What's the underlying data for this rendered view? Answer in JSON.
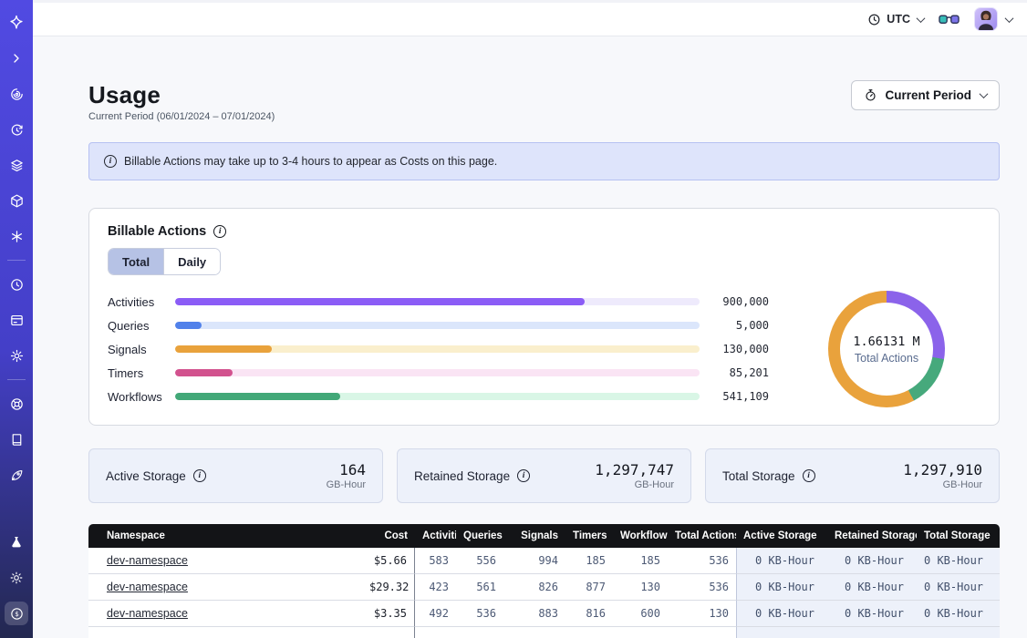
{
  "topbar": {
    "timezone_label": "UTC"
  },
  "sidebar": {
    "icons": [
      "temporal-logo",
      "collapse",
      "workflows",
      "schedules",
      "namespaces",
      "deployments",
      "nexus",
      "world-clock",
      "usage-window",
      "settings",
      "support",
      "docs",
      "getting-started",
      "labs",
      "theme",
      "billing"
    ],
    "active_icon": "billing"
  },
  "page": {
    "title": "Usage",
    "subtitle": "Current Period (06/01/2024 – 07/01/2024)",
    "period_button_label": "Current Period",
    "banner_text": "Billable Actions may take up to 3-4 hours to appear as Costs on this page."
  },
  "billable": {
    "title": "Billable Actions",
    "tabs": [
      "Total",
      "Daily"
    ],
    "active_tab": "Total"
  },
  "chart_data": [
    {
      "type": "bar",
      "title": "Billable Actions — Total",
      "categories": [
        "Activities",
        "Queries",
        "Signals",
        "Timers",
        "Workflows"
      ],
      "values": [
        900000,
        5000,
        130000,
        85201,
        541109
      ],
      "value_labels": [
        "900,000",
        "5,000",
        "130,000",
        "85,201",
        "541,109"
      ],
      "bar_colors": [
        "#8b5cf6",
        "#5181ea",
        "#e9a23c",
        "#d2528e",
        "#42a878"
      ],
      "track_colors": [
        "#eeeafc",
        "#dbe6fb",
        "#faefcd",
        "#fae4f4",
        "#d9f6e6"
      ],
      "fill_pct": [
        78,
        5,
        18.5,
        11,
        31.5
      ],
      "xlabel": "",
      "ylabel": "",
      "grid": false,
      "legend": false
    },
    {
      "type": "pie",
      "title": "Total Actions",
      "center_value": "1.66131 M",
      "center_label": "Total Actions",
      "segments": [
        {
          "color": "#8b63ea",
          "from_deg": 0,
          "to_deg": 100
        },
        {
          "color": "#46a97c",
          "from_deg": 100,
          "to_deg": 152
        },
        {
          "color": "#e9a23c",
          "from_deg": 152,
          "to_deg": 360
        }
      ]
    }
  ],
  "storage_cards": [
    {
      "label": "Active Storage",
      "value": "164",
      "unit": "GB-Hour"
    },
    {
      "label": "Retained Storage",
      "value": "1,297,747",
      "unit": "GB-Hour"
    },
    {
      "label": "Total Storage",
      "value": "1,297,910",
      "unit": "GB-Hour"
    }
  ],
  "table": {
    "columns": [
      "Namespace",
      "Cost",
      "Activities",
      "Queries",
      "Signals",
      "Timers",
      "Workflows",
      "Total Actions",
      "Active Storage",
      "Retained Storage",
      "Total Storage"
    ],
    "rows": [
      [
        "dev-namespace",
        "$5.66",
        "583",
        "556",
        "994",
        "185",
        "185",
        "536",
        "0 KB-Hour",
        "0 KB-Hour",
        "0 KB-Hour"
      ],
      [
        "dev-namespace",
        "$29.32",
        "423",
        "561",
        "826",
        "877",
        "130",
        "536",
        "0 KB-Hour",
        "0 KB-Hour",
        "0 KB-Hour"
      ],
      [
        "dev-namespace",
        "$3.35",
        "492",
        "536",
        "883",
        "816",
        "600",
        "130",
        "0 KB-Hour",
        "0 KB-Hour",
        "0 KB-Hour"
      ]
    ]
  },
  "colors": {
    "accent": "#444ce7",
    "sidebar_top": "#514ae2",
    "sidebar_bottom": "#232850",
    "banner_bg": "#dee4fb",
    "table_header_bg": "#131417",
    "active_tab_bg": "#b6c2e5"
  }
}
